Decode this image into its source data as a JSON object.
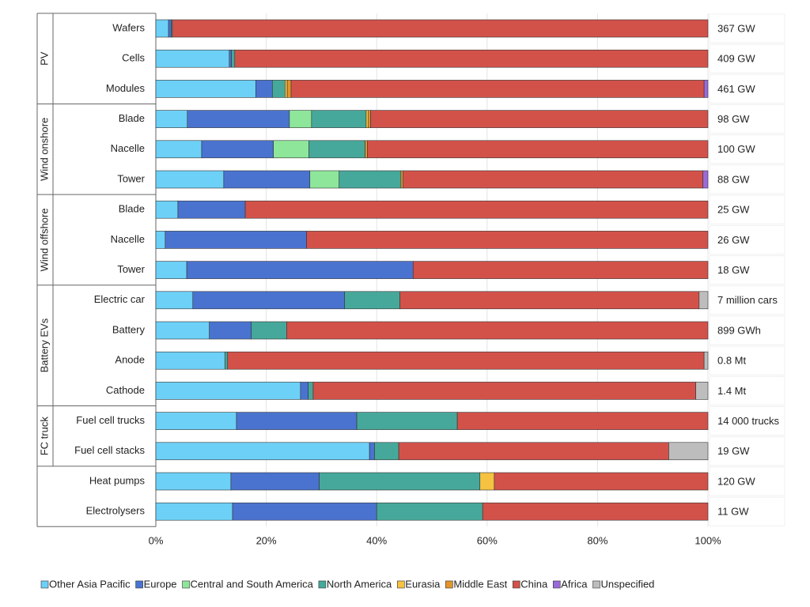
{
  "chart_data": {
    "type": "stacked-bar-horizontal",
    "categories": [
      "Wafers",
      "Cells",
      "Modules",
      "Blade",
      "Nacelle",
      "Tower",
      "Blade",
      "Nacelle",
      "Tower",
      "Electric car",
      "Battery",
      "Anode",
      "Cathode",
      "Fuel cell trucks",
      "Fuel cell stacks",
      "Heat pumps",
      "Electrolysers"
    ],
    "category_groups": [
      "PV",
      "PV",
      "PV",
      "Wind onshore",
      "Wind onshore",
      "Wind onshore",
      "Wind offshore",
      "Wind offshore",
      "Wind offshore",
      "Battery EVs",
      "Battery EVs",
      "Battery EVs",
      "Battery EVs",
      "FC truck",
      "FC truck",
      null,
      null
    ],
    "totals": [
      "367 GW",
      "409 GW",
      "461 GW",
      "98 GW",
      "100 GW",
      "88 GW",
      "25 GW",
      "26 GW",
      "18 GW",
      "7 million cars",
      "899 GWh",
      "0.8 Mt",
      "1.4 Mt",
      "14 000 trucks",
      "19 GW",
      "120 GW",
      "11 GW"
    ],
    "series": [
      {
        "name": "Other Asia Pacific",
        "color": "#6dd0f7",
        "values": [
          2.3,
          13.3,
          18.1,
          5.7,
          8.3,
          12.3,
          4.0,
          1.7,
          5.6,
          6.7,
          9.7,
          12.5,
          26.2,
          14.6,
          38.7,
          13.6,
          13.9
        ]
      },
      {
        "name": "Europe",
        "color": "#4a73cf",
        "values": [
          0.5,
          0.4,
          3.0,
          18.5,
          13.0,
          15.6,
          12.2,
          25.6,
          41.0,
          27.5,
          7.6,
          0,
          1.4,
          21.8,
          0.9,
          16.0,
          26.1
        ]
      },
      {
        "name": "Central and South America",
        "color": "#8ee69b",
        "values": [
          0,
          0,
          0,
          4.0,
          6.4,
          5.3,
          0,
          0,
          0,
          0,
          0,
          0,
          0,
          0,
          0,
          0,
          0
        ]
      },
      {
        "name": "North America",
        "color": "#46a89a",
        "values": [
          0.2,
          0.6,
          2.3,
          9.9,
          10.2,
          11.2,
          0,
          0,
          0,
          10.0,
          6.4,
          0.5,
          0.9,
          18.2,
          4.4,
          29.1,
          19.2
        ]
      },
      {
        "name": "Eurasia",
        "color": "#f5c242",
        "values": [
          0,
          0,
          0.4,
          0.4,
          0,
          0,
          0,
          0,
          0,
          0,
          0,
          0,
          0,
          0,
          0,
          2.6,
          0
        ]
      },
      {
        "name": "Middle East",
        "color": "#e2962b",
        "values": [
          0,
          0,
          0.7,
          0.4,
          0.4,
          0.4,
          0,
          0,
          0,
          0,
          0,
          0,
          0,
          0,
          0,
          0,
          0
        ]
      },
      {
        "name": "China",
        "color": "#d2524a",
        "values": [
          97.0,
          85.7,
          74.8,
          61.1,
          61.7,
          54.3,
          83.8,
          72.7,
          53.4,
          54.2,
          76.3,
          86.3,
          69.3,
          45.4,
          48.9,
          38.7,
          40.8
        ]
      },
      {
        "name": "Africa",
        "color": "#9b6ad8",
        "values": [
          0,
          0,
          0.7,
          0,
          0,
          0.9,
          0,
          0,
          0,
          0,
          0,
          0,
          0,
          0,
          0,
          0,
          0
        ]
      },
      {
        "name": "Unspecified",
        "color": "#bdbdbd",
        "values": [
          0,
          0,
          0,
          0,
          0,
          0,
          0,
          0,
          0,
          1.6,
          0,
          0.7,
          2.2,
          0,
          7.1,
          0,
          0
        ]
      }
    ],
    "xlim": [
      0,
      100
    ],
    "xticks": [
      {
        "value": 0,
        "label": "0%"
      },
      {
        "value": 20,
        "label": "20%"
      },
      {
        "value": 40,
        "label": "40%"
      },
      {
        "value": 60,
        "label": "60%"
      },
      {
        "value": 80,
        "label": "80%"
      },
      {
        "value": 100,
        "label": "100%"
      }
    ],
    "grid": true,
    "legend": "bottom"
  }
}
